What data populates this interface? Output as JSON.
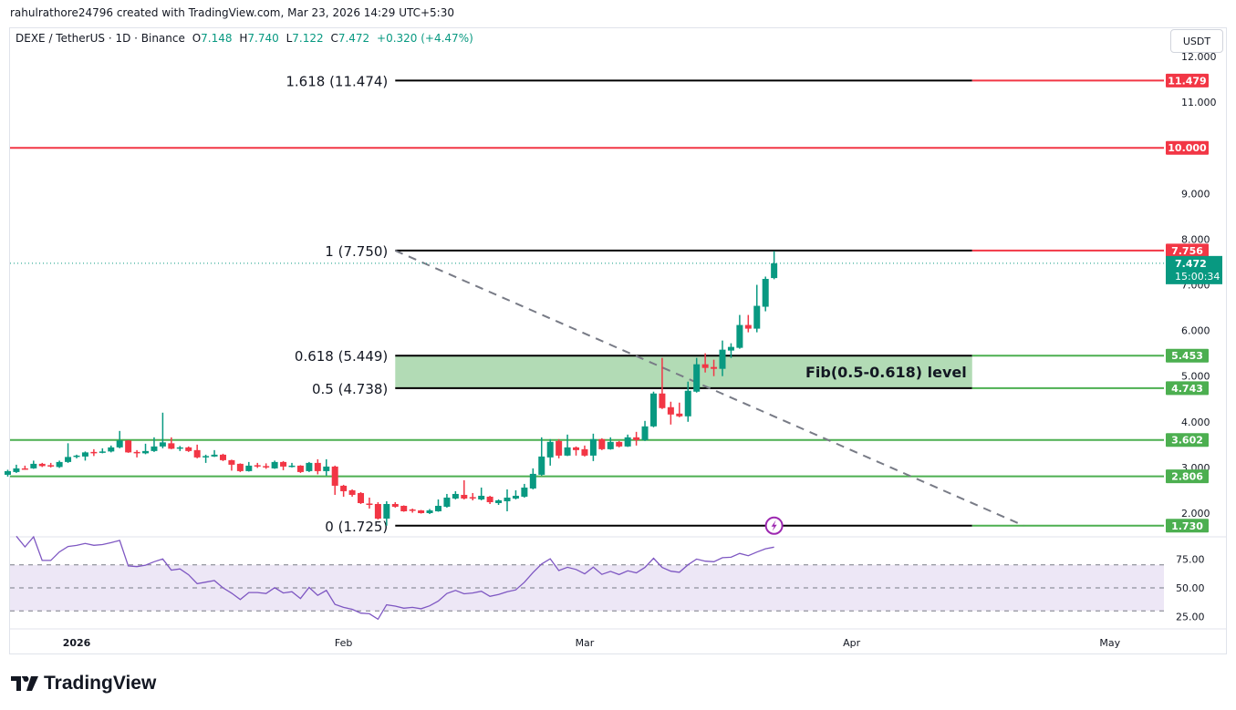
{
  "header": {
    "created_note": "rahulrathore24796 created with TradingView.com, Mar 23, 2026 14:29 UTC+5:30",
    "symbol": "DEXE / TetherUS · 1D · Binance",
    "open_label": "O",
    "open": "7.148",
    "high_label": "H",
    "high": "7.740",
    "low_label": "L",
    "low": "7.122",
    "close_label": "C",
    "close": "7.472",
    "change": "+0.320 (+4.47%)"
  },
  "currency_button": "USDT",
  "brand": {
    "name": "TradingView",
    "logo_icon": "tradingview-logo-icon"
  },
  "colors": {
    "up": "#089981",
    "down": "#f23645",
    "fib_band": "#b2dbb5",
    "support": "#4caf50",
    "resistance": "#f23645",
    "rsi": "#7e57c2",
    "rsi_band": "#ede7f6"
  },
  "chart_data": {
    "type": "candlestick",
    "ylim": [
      1.4,
      12.5
    ],
    "price_ticks": [
      "12.000",
      "11.000",
      "9.000",
      "8.000",
      "7.000",
      "6.000",
      "5.000",
      "4.000",
      "3.000",
      "2.000"
    ],
    "time_ticks": [
      {
        "label": "2026",
        "date": "2026-01-01"
      },
      {
        "label": "Feb",
        "date": "2026-02-01"
      },
      {
        "label": "Mar",
        "date": "2026-03-01"
      },
      {
        "label": "Apr",
        "date": "2026-04-01"
      },
      {
        "label": "May",
        "date": "2026-05-01"
      }
    ],
    "candle_fields": [
      "date",
      "open",
      "high",
      "low",
      "close"
    ],
    "candles": [
      [
        "2025-12-24",
        2.84,
        2.95,
        2.8,
        2.92
      ],
      [
        "2025-12-25",
        2.9,
        3.06,
        2.88,
        2.98
      ],
      [
        "2025-12-26",
        2.98,
        3.04,
        2.95,
        2.97
      ],
      [
        "2025-12-27",
        2.98,
        3.15,
        2.97,
        3.08
      ],
      [
        "2025-12-28",
        3.08,
        3.1,
        3.01,
        3.03
      ],
      [
        "2025-12-29",
        3.05,
        3.1,
        3.0,
        3.03
      ],
      [
        "2025-12-30",
        3.01,
        3.15,
        2.99,
        3.12
      ],
      [
        "2025-12-31",
        3.12,
        3.53,
        3.1,
        3.23
      ],
      [
        "2026-01-01",
        3.23,
        3.28,
        3.2,
        3.26
      ],
      [
        "2026-01-02",
        3.24,
        3.35,
        3.15,
        3.33
      ],
      [
        "2026-01-03",
        3.34,
        3.4,
        3.25,
        3.32
      ],
      [
        "2026-01-04",
        3.32,
        3.42,
        3.31,
        3.35
      ],
      [
        "2026-01-05",
        3.35,
        3.48,
        3.33,
        3.44
      ],
      [
        "2026-01-06",
        3.44,
        3.8,
        3.42,
        3.59
      ],
      [
        "2026-01-07",
        3.59,
        3.6,
        3.32,
        3.33
      ],
      [
        "2026-01-08",
        3.34,
        3.38,
        3.22,
        3.32
      ],
      [
        "2026-01-09",
        3.31,
        3.52,
        3.29,
        3.36
      ],
      [
        "2026-01-10",
        3.36,
        3.66,
        3.34,
        3.46
      ],
      [
        "2026-01-11",
        3.46,
        4.2,
        3.42,
        3.55
      ],
      [
        "2026-01-12",
        3.53,
        3.66,
        3.4,
        3.41
      ],
      [
        "2026-01-13",
        3.41,
        3.47,
        3.36,
        3.44
      ],
      [
        "2026-01-14",
        3.44,
        3.46,
        3.34,
        3.36
      ],
      [
        "2026-01-15",
        3.38,
        3.5,
        3.2,
        3.22
      ],
      [
        "2026-01-16",
        3.23,
        3.28,
        3.1,
        3.25
      ],
      [
        "2026-01-17",
        3.24,
        3.38,
        3.23,
        3.28
      ],
      [
        "2026-01-18",
        3.28,
        3.3,
        3.14,
        3.16
      ],
      [
        "2026-01-19",
        3.16,
        3.17,
        2.93,
        3.06
      ],
      [
        "2026-01-20",
        3.08,
        3.09,
        2.9,
        2.92
      ],
      [
        "2026-01-21",
        2.92,
        3.12,
        2.91,
        3.04
      ],
      [
        "2026-01-22",
        3.05,
        3.1,
        2.99,
        3.04
      ],
      [
        "2026-01-23",
        3.03,
        3.09,
        2.97,
        3.02
      ],
      [
        "2026-01-24",
        2.98,
        3.15,
        2.97,
        3.12
      ],
      [
        "2026-01-25",
        3.12,
        3.14,
        2.94,
        3.02
      ],
      [
        "2026-01-26",
        3.03,
        3.1,
        3.0,
        3.04
      ],
      [
        "2026-01-27",
        3.04,
        3.05,
        2.88,
        2.9
      ],
      [
        "2026-01-28",
        2.92,
        3.12,
        2.9,
        3.1
      ],
      [
        "2026-01-29",
        3.1,
        3.18,
        2.85,
        2.92
      ],
      [
        "2026-01-30",
        2.92,
        3.18,
        2.82,
        3.02
      ],
      [
        "2026-01-31",
        3.02,
        3.04,
        2.4,
        2.6
      ],
      [
        "2026-02-01",
        2.6,
        2.62,
        2.36,
        2.48
      ],
      [
        "2026-02-02",
        2.5,
        2.52,
        2.36,
        2.4
      ],
      [
        "2026-02-03",
        2.44,
        2.46,
        2.2,
        2.22
      ],
      [
        "2026-02-04",
        2.21,
        2.34,
        2.1,
        2.19
      ],
      [
        "2026-02-05",
        2.2,
        2.24,
        1.86,
        1.88
      ],
      [
        "2026-02-06",
        1.88,
        2.26,
        1.725,
        2.2
      ],
      [
        "2026-02-07",
        2.2,
        2.24,
        2.12,
        2.14
      ],
      [
        "2026-02-08",
        2.16,
        2.17,
        2.03,
        2.04
      ],
      [
        "2026-02-09",
        2.08,
        2.1,
        2.01,
        2.06
      ],
      [
        "2026-02-10",
        2.06,
        2.07,
        1.99,
        2.0
      ],
      [
        "2026-02-11",
        2.0,
        2.09,
        1.98,
        2.06
      ],
      [
        "2026-02-12",
        2.04,
        2.3,
        2.03,
        2.16
      ],
      [
        "2026-02-13",
        2.14,
        2.42,
        2.12,
        2.34
      ],
      [
        "2026-02-14",
        2.32,
        2.48,
        2.3,
        2.42
      ],
      [
        "2026-02-15",
        2.4,
        2.72,
        2.3,
        2.32
      ],
      [
        "2026-02-16",
        2.35,
        2.44,
        2.28,
        2.34
      ],
      [
        "2026-02-17",
        2.3,
        2.56,
        2.28,
        2.38
      ],
      [
        "2026-02-18",
        2.36,
        2.38,
        2.2,
        2.24
      ],
      [
        "2026-02-19",
        2.22,
        2.3,
        2.18,
        2.28
      ],
      [
        "2026-02-20",
        2.26,
        2.52,
        2.04,
        2.34
      ],
      [
        "2026-02-21",
        2.32,
        2.5,
        2.3,
        2.38
      ],
      [
        "2026-02-22",
        2.36,
        2.64,
        2.34,
        2.56
      ],
      [
        "2026-02-23",
        2.54,
        2.98,
        2.52,
        2.86
      ],
      [
        "2026-02-24",
        2.84,
        3.66,
        2.82,
        3.24
      ],
      [
        "2026-02-25",
        3.22,
        3.62,
        3.04,
        3.56
      ],
      [
        "2026-02-26",
        3.58,
        3.62,
        3.2,
        3.26
      ],
      [
        "2026-02-27",
        3.26,
        3.72,
        3.25,
        3.44
      ],
      [
        "2026-02-28",
        3.44,
        3.46,
        3.26,
        3.38
      ],
      [
        "2026-03-01",
        3.4,
        3.48,
        3.24,
        3.26
      ],
      [
        "2026-03-02",
        3.26,
        3.74,
        3.14,
        3.62
      ],
      [
        "2026-03-03",
        3.62,
        3.64,
        3.38,
        3.4
      ],
      [
        "2026-03-04",
        3.4,
        3.66,
        3.39,
        3.56
      ],
      [
        "2026-03-05",
        3.56,
        3.58,
        3.44,
        3.46
      ],
      [
        "2026-03-06",
        3.46,
        3.72,
        3.45,
        3.66
      ],
      [
        "2026-03-07",
        3.66,
        3.78,
        3.48,
        3.6
      ],
      [
        "2026-03-08",
        3.6,
        4.02,
        3.58,
        3.9
      ],
      [
        "2026-03-09",
        3.9,
        4.66,
        3.88,
        4.62
      ],
      [
        "2026-03-10",
        4.62,
        5.4,
        4.28,
        4.3
      ],
      [
        "2026-03-11",
        4.32,
        4.44,
        3.94,
        4.16
      ],
      [
        "2026-03-12",
        4.18,
        4.42,
        4.1,
        4.12
      ],
      [
        "2026-03-13",
        4.12,
        4.88,
        4.0,
        4.68
      ],
      [
        "2026-03-14",
        4.66,
        5.4,
        4.64,
        5.26
      ],
      [
        "2026-03-15",
        5.26,
        5.5,
        5.08,
        5.18
      ],
      [
        "2026-03-16",
        5.2,
        5.36,
        5.0,
        5.16
      ],
      [
        "2026-03-17",
        5.16,
        5.78,
        5.0,
        5.58
      ],
      [
        "2026-03-18",
        5.56,
        5.72,
        5.4,
        5.64
      ],
      [
        "2026-03-19",
        5.62,
        6.34,
        5.6,
        6.12
      ],
      [
        "2026-03-20",
        6.12,
        6.34,
        5.96,
        6.04
      ],
      [
        "2026-03-21",
        6.04,
        7.0,
        5.96,
        6.54
      ],
      [
        "2026-03-22",
        6.52,
        7.18,
        6.42,
        7.13
      ],
      [
        "2026-03-23",
        7.148,
        7.74,
        7.122,
        7.472
      ]
    ],
    "fib_levels": [
      {
        "label": "1.618 (11.474)",
        "price": 11.474,
        "axis_label": "11.479",
        "ext_color": "#f23645"
      },
      {
        "label": "1 (7.750)",
        "price": 7.75,
        "axis_label": "7.756",
        "ext_color": "#f23645"
      },
      {
        "label": "0.618 (5.449)",
        "price": 5.449,
        "axis_label": "5.453",
        "ext_color": "#4caf50"
      },
      {
        "label": "0.5 (4.738)",
        "price": 4.738,
        "axis_label": "4.743",
        "ext_color": "#4caf50"
      },
      {
        "label": "0 (1.725)",
        "price": 1.725,
        "axis_label": "1.730",
        "ext_color": "#4caf50"
      }
    ],
    "fib_start_date": "2026-02-07",
    "fib_end_date": "2026-04-15",
    "fib_zone": {
      "label": "Fib(0.5-0.618) level",
      "from": 4.738,
      "to": 5.449
    },
    "horizontal_lines": [
      {
        "price": 10.0,
        "axis_label": "10.000",
        "color": "#f23645"
      },
      {
        "price": 3.602,
        "axis_label": "3.602",
        "color": "#4caf50"
      },
      {
        "price": 2.806,
        "axis_label": "2.806",
        "color": "#4caf50"
      }
    ],
    "trend_line": {
      "from": {
        "date": "2026-02-07",
        "price": 7.75
      },
      "to": {
        "date": "2026-04-21",
        "price": 1.725
      },
      "style": "dashed"
    },
    "last_price": {
      "price": 7.472,
      "label": "7.472",
      "countdown": "15:00:34"
    },
    "event_icon": "lightning-icon",
    "rsi": {
      "period": 14,
      "levels": [
        70,
        50,
        30
      ],
      "ticks": [
        "75.00",
        "50.00",
        "25.00"
      ],
      "ylim": [
        10,
        95
      ]
    }
  }
}
